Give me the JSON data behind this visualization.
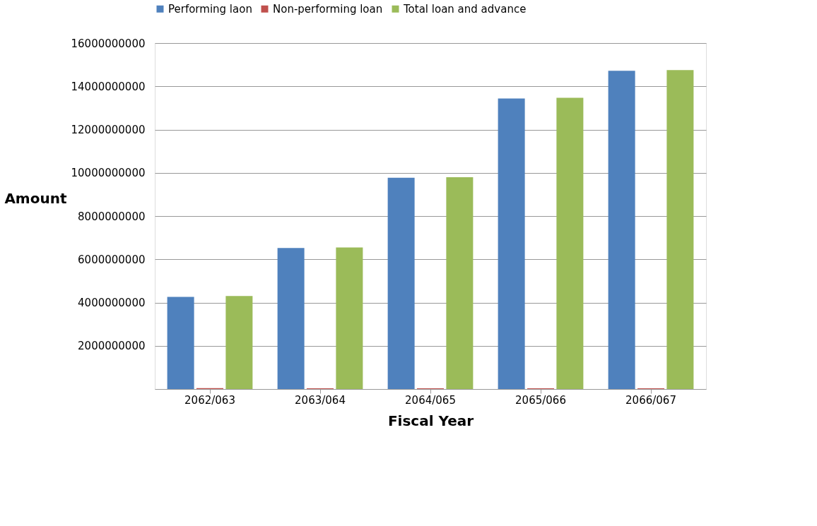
{
  "chart_data": {
    "type": "bar",
    "xlabel": "Fiscal Year",
    "ylabel": "Amount",
    "categories": [
      "2062/063",
      "2063/064",
      "2064/065",
      "2065/066",
      "2066/067"
    ],
    "series": [
      {
        "name": "Performing laon",
        "color": "#4f81bd",
        "values": [
          4260000000,
          6520000000,
          9770000000,
          13440000000,
          14720000000
        ]
      },
      {
        "name": "Non-performing loan",
        "color": "#c0504d",
        "values": [
          40000000,
          30000000,
          30000000,
          30000000,
          30000000
        ]
      },
      {
        "name": "Total loan and advance",
        "color": "#9bbb59",
        "values": [
          4300000000,
          6550000000,
          9800000000,
          13470000000,
          14750000000
        ]
      }
    ],
    "ylim": [
      0,
      16000000000
    ],
    "yticks": [
      2000000000,
      4000000000,
      6000000000,
      8000000000,
      10000000000,
      12000000000,
      14000000000,
      16000000000
    ],
    "grid": "y",
    "legend": "top"
  }
}
